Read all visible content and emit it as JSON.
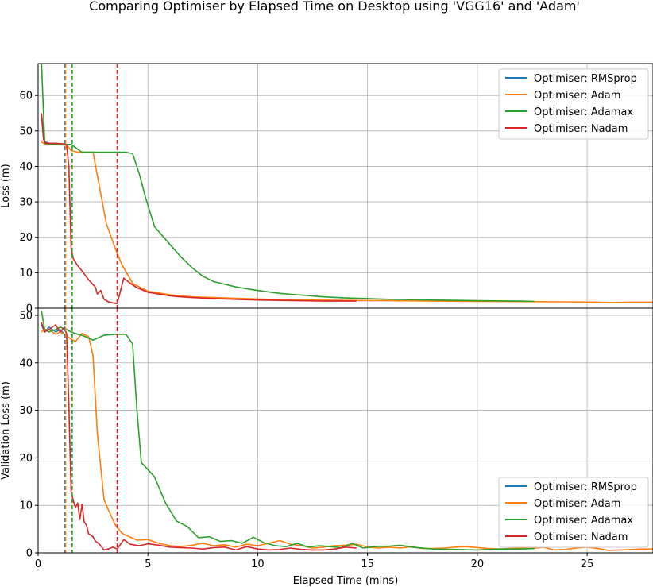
{
  "figure": {
    "title": "Comparing Optimiser by Elapsed Time on Desktop using 'VGG16' and 'Adam'",
    "xlabel": "Elapsed Time (mins)"
  },
  "colors": {
    "RMSprop": "#1f77b4",
    "Adam": "#ff7f0e",
    "Adamax": "#2ca02c",
    "Nadam": "#d62728",
    "grid": "#b0b0b0"
  },
  "chart_data": [
    {
      "type": "line",
      "ylabel": "Loss (m)",
      "xlim": [
        0,
        28
      ],
      "ylim": [
        0,
        69
      ],
      "xticks": [
        0,
        5,
        10,
        15,
        20,
        25
      ],
      "yticks": [
        0,
        10,
        20,
        30,
        40,
        50,
        60
      ],
      "grid": true,
      "legend": "top-right",
      "vlines": [
        {
          "series": "RMSprop",
          "x": 1.2
        },
        {
          "series": "Adam",
          "x": 1.25
        },
        {
          "series": "Adamax",
          "x": 1.55
        },
        {
          "series": "Nadam",
          "x": 3.6
        }
      ],
      "series": [
        {
          "name": "Optimiser: RMSprop",
          "key": "RMSprop",
          "x": [
            0.15,
            0.3,
            0.5,
            0.8,
            1.0,
            1.2
          ],
          "y": [
            55,
            47,
            46.5,
            46.5,
            46.2,
            46
          ]
        },
        {
          "name": "Optimiser: Adam",
          "key": "Adam",
          "x": [
            0.15,
            0.3,
            0.6,
            1.0,
            1.3,
            1.5,
            1.8,
            2.2,
            2.5,
            2.8,
            3.1,
            3.5,
            3.8,
            4.3,
            5.0,
            6.0,
            7.0,
            8.0,
            9.0,
            10.0,
            12.0,
            14.0,
            16.0,
            18.0,
            20.0,
            22.0,
            24.0,
            25.5,
            26.0,
            27.0,
            28.0
          ],
          "y": [
            47,
            46.3,
            46.2,
            46.2,
            46,
            44.5,
            44,
            44,
            44,
            34,
            24,
            17,
            12.5,
            7,
            4.8,
            3.8,
            3.2,
            3,
            2.8,
            2.6,
            2.3,
            2.2,
            2.1,
            2,
            1.9,
            1.85,
            1.8,
            1.7,
            1.6,
            1.7,
            1.7
          ]
        },
        {
          "name": "Optimiser: Adamax",
          "key": "Adamax",
          "x": [
            0.15,
            0.3,
            0.5,
            1.0,
            1.5,
            2.0,
            3.0,
            4.0,
            4.3,
            4.6,
            4.9,
            5.3,
            6.0,
            6.5,
            7.0,
            7.5,
            8.0,
            9.0,
            10.0,
            11.0,
            12.0,
            13.0,
            14.0,
            15.0,
            16.0,
            18.0,
            20.0,
            22.0,
            22.6
          ],
          "y": [
            70,
            46.5,
            46.2,
            46.2,
            46.2,
            44,
            44,
            44,
            43.6,
            38,
            31,
            23,
            18,
            14.5,
            11.5,
            9,
            7.5,
            6,
            5,
            4.2,
            3.7,
            3.2,
            2.9,
            2.7,
            2.5,
            2.3,
            2.1,
            2,
            1.9
          ]
        },
        {
          "name": "Optimiser: Nadam",
          "key": "Nadam",
          "x": [
            0.15,
            0.25,
            0.35,
            0.5,
            0.8,
            1.1,
            1.3,
            1.4,
            1.5,
            1.6,
            1.8,
            2.0,
            2.3,
            2.6,
            2.7,
            2.85,
            3.0,
            3.2,
            3.4,
            3.6,
            3.9,
            4.2,
            4.5,
            5.0,
            5.5,
            6.0,
            6.5,
            7.0,
            8.0,
            9.0,
            10.0,
            11.0,
            12.0,
            13.0,
            14.0,
            14.5
          ],
          "y": [
            55,
            47.5,
            46.5,
            46.5,
            46.5,
            46.4,
            46,
            40,
            17,
            14,
            12,
            10.5,
            8,
            6,
            4,
            5,
            2.5,
            1.8,
            1.5,
            1.3,
            8.5,
            7,
            5.8,
            4.5,
            4,
            3.5,
            3.2,
            3,
            2.7,
            2.5,
            2.3,
            2.2,
            2.1,
            2,
            2,
            2
          ]
        }
      ]
    },
    {
      "type": "line",
      "ylabel": "Validation Loss (m)",
      "xlim": [
        0,
        28
      ],
      "ylim": [
        0,
        51.5
      ],
      "xticks": [
        0,
        5,
        10,
        15,
        20,
        25
      ],
      "yticks": [
        0,
        10,
        20,
        30,
        40,
        50
      ],
      "grid": true,
      "legend": "bottom-right",
      "vlines": [
        {
          "series": "RMSprop",
          "x": 1.2
        },
        {
          "series": "Adam",
          "x": 1.25
        },
        {
          "series": "Adamax",
          "x": 1.55
        },
        {
          "series": "Nadam",
          "x": 3.6
        }
      ],
      "series": [
        {
          "name": "Optimiser: RMSprop",
          "key": "RMSprop",
          "x": [
            0.15,
            0.3,
            0.5,
            0.8,
            1.0,
            1.2
          ],
          "y": [
            48,
            46.5,
            47.5,
            46.5,
            47,
            46
          ]
        },
        {
          "name": "Optimiser: Adam",
          "key": "Adam",
          "x": [
            0.15,
            0.3,
            0.5,
            0.8,
            1.0,
            1.2,
            1.5,
            1.7,
            2.0,
            2.3,
            2.5,
            2.7,
            3.0,
            3.2,
            3.5,
            3.8,
            4.0,
            4.5,
            5.0,
            5.5,
            6.0,
            6.5,
            7.0,
            7.5,
            8.0,
            8.5,
            9.0,
            9.5,
            10.0,
            10.5,
            11.0,
            11.5,
            12.0,
            12.5,
            13.0,
            13.5,
            14.0,
            14.5,
            15.0,
            15.5,
            16.0,
            16.5,
            17.0,
            17.5,
            18.0,
            18.5,
            19.0,
            19.5,
            20.0,
            20.5,
            21.0,
            21.5,
            22.0,
            22.5,
            23.0,
            23.5,
            24.0,
            24.5,
            25.0,
            25.5,
            26.0,
            26.5,
            27.0,
            27.5,
            28.0
          ],
          "y": [
            46.5,
            47,
            47,
            46,
            46.5,
            46,
            45,
            44.5,
            46.2,
            45.5,
            41.5,
            25,
            11.3,
            9,
            6,
            4.2,
            3.7,
            2.7,
            2.8,
            2,
            1.5,
            1.3,
            1.6,
            2,
            1.5,
            1.7,
            1.2,
            1.8,
            1.5,
            2,
            2.6,
            1.8,
            1.5,
            1,
            1.2,
            1.5,
            1.6,
            1.8,
            1.2,
            1,
            1.2,
            1,
            1.3,
            0.9,
            0.9,
            1,
            1.2,
            1.3,
            1.1,
            0.9,
            0.8,
            0.9,
            1,
            0.9,
            1.2,
            0.6,
            0.7,
            1,
            1.2,
            0.9,
            0.5,
            0.6,
            0.7,
            0.8,
            0.8
          ]
        },
        {
          "name": "Optimiser: Adamax",
          "key": "Adamax",
          "x": [
            0.15,
            0.3,
            0.5,
            0.8,
            1.0,
            1.3,
            1.5,
            1.8,
            2.0,
            2.5,
            3.0,
            3.5,
            4.0,
            4.3,
            4.5,
            4.7,
            4.9,
            5.3,
            5.8,
            6.3,
            6.8,
            7.3,
            7.8,
            8.3,
            8.8,
            9.3,
            9.8,
            10.3,
            10.8,
            11.3,
            11.8,
            12.3,
            12.8,
            13.3,
            13.8,
            14.3,
            14.8,
            15.3,
            16.0,
            16.5,
            17.0,
            18.0,
            19.0,
            20.0,
            21.0,
            22.0,
            22.6
          ],
          "y": [
            51,
            47,
            46.5,
            47,
            47.5,
            47,
            46.5,
            46,
            45.8,
            44.8,
            45.8,
            46,
            46,
            44,
            30,
            19,
            18,
            16,
            10.5,
            6.7,
            5.5,
            3.2,
            3.4,
            2.4,
            2.6,
            2,
            3.3,
            2.1,
            1.5,
            1.3,
            2,
            1.2,
            1.5,
            1.3,
            1.1,
            2,
            1,
            1.3,
            1.4,
            1.6,
            1.2,
            0.8,
            0.7,
            0.6,
            0.8,
            0.8,
            0.9
          ]
        },
        {
          "name": "Optimiser: Nadam",
          "key": "Nadam",
          "x": [
            0.15,
            0.3,
            0.5,
            0.8,
            1.0,
            1.2,
            1.3,
            1.4,
            1.5,
            1.6,
            1.7,
            1.8,
            1.9,
            2.0,
            2.1,
            2.2,
            2.3,
            2.5,
            2.6,
            2.8,
            3.0,
            3.2,
            3.4,
            3.6,
            3.9,
            4.2,
            4.6,
            5.0,
            5.5,
            6.0,
            6.5,
            7.0,
            7.5,
            8.0,
            8.5,
            9.0,
            9.5,
            10.0,
            10.5,
            11.0,
            11.5,
            12.0,
            12.5,
            13.0,
            13.5,
            14.0,
            14.5
          ],
          "y": [
            48.5,
            46.5,
            47,
            48,
            46.5,
            47.5,
            46,
            31,
            13,
            11,
            9.5,
            10.5,
            7,
            10.2,
            6.5,
            5.8,
            4,
            3.4,
            2.5,
            1.8,
            0.6,
            0.8,
            1.2,
            0.8,
            2.8,
            1.8,
            1.5,
            1.9,
            1.6,
            1.2,
            1.1,
            1,
            0.8,
            1.1,
            1.2,
            0.6,
            1.3,
            0.8,
            0.6,
            0.7,
            1,
            0.7,
            0.6,
            0.6,
            0.8,
            1.2,
            1
          ]
        }
      ]
    }
  ]
}
